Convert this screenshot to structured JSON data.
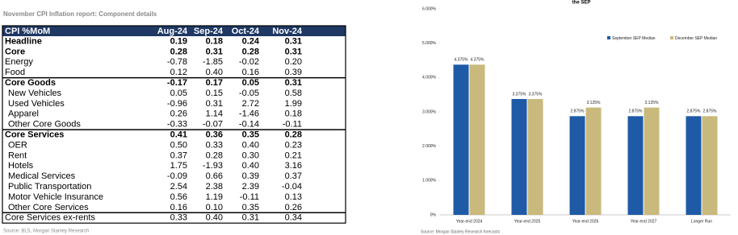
{
  "table": {
    "title": "November CPI Inflation report: Component details",
    "header": [
      "CPI %MoM",
      "Aug-24",
      "Sep-24",
      "Oct-24",
      "Nov-24"
    ],
    "rows": [
      [
        "Headline",
        "0.19",
        "0.18",
        "0.24",
        "0.31"
      ],
      [
        "Core",
        "0.28",
        "0.31",
        "0.28",
        "0.31"
      ],
      [
        "Energy",
        "-0.78",
        "-1.85",
        "-0.02",
        "0.20"
      ],
      [
        "Food",
        "0.12",
        "0.40",
        "0.16",
        "0.39"
      ],
      [
        "Core Goods",
        "-0.17",
        "0.17",
        "0.05",
        "0.31"
      ],
      [
        "New Vehicles",
        "0.05",
        "0.15",
        "-0.05",
        "0.58"
      ],
      [
        "Used Vehicles",
        "-0.96",
        "0.31",
        "2.72",
        "1.99"
      ],
      [
        "Apparel",
        "0.26",
        "1.14",
        "-1.46",
        "0.18"
      ],
      [
        "Other Core Goods",
        "-0.33",
        "-0.07",
        "-0.14",
        "-0.11"
      ],
      [
        "Core Services",
        "0.41",
        "0.36",
        "0.35",
        "0.28"
      ],
      [
        "OER",
        "0.50",
        "0.33",
        "0.40",
        "0.23"
      ],
      [
        "Rent",
        "0.37",
        "0.28",
        "0.30",
        "0.21"
      ],
      [
        "Hotels",
        "1.75",
        "-1.93",
        "0.40",
        "3.16"
      ],
      [
        "Medical Services",
        "-0.09",
        "0.66",
        "0.39",
        "0.37"
      ],
      [
        "Public Transportation",
        "2.54",
        "2.38",
        "2.39",
        "-0.04"
      ],
      [
        "Motor Vehicle Insurance",
        "0.56",
        "1.19",
        "-0.11",
        "0.13"
      ],
      [
        "Other Core Services",
        "0.16",
        "0.10",
        "0.35",
        "0.26"
      ],
      [
        "Core Services ex-rents",
        "0.33",
        "0.40",
        "0.31",
        "0.34"
      ]
    ],
    "source": "Source: BLS, Morgan Stanley Research"
  },
  "chart_data": {
    "type": "bar",
    "title": "the SEP",
    "categories": [
      "Year-end 2024",
      "Year-end 2025",
      "Year-end 2026",
      "Year-end 2027",
      "Longer Run"
    ],
    "series": [
      {
        "name": "September SEP Median",
        "color": "#1f5aa6",
        "values": [
          4.375,
          3.375,
          2.875,
          2.875,
          2.875
        ],
        "value_labels": [
          "4.375%",
          "3.375%",
          "2.875%",
          "2.875%",
          "2.875%"
        ]
      },
      {
        "name": "December SEP Median",
        "color": "#c9b97c",
        "values": [
          4.375,
          3.375,
          3.125,
          3.125,
          2.875
        ],
        "value_labels": [
          "4.375%",
          "3.375%",
          "3.125%",
          "3.125%",
          "2.875%"
        ]
      }
    ],
    "ylim": [
      0,
      6
    ],
    "yticks": [
      {
        "value": 0,
        "label": "0%"
      },
      {
        "value": 1,
        "label": "1.000%"
      },
      {
        "value": 2,
        "label": "2.000%"
      },
      {
        "value": 3,
        "label": "3.000%"
      },
      {
        "value": 4,
        "label": "4.000%"
      },
      {
        "value": 5,
        "label": "5.000%"
      },
      {
        "value": 6,
        "label": "6.000%"
      }
    ],
    "legend": "top-right",
    "source": "Source: Morgan Stanley Research forecasts"
  }
}
